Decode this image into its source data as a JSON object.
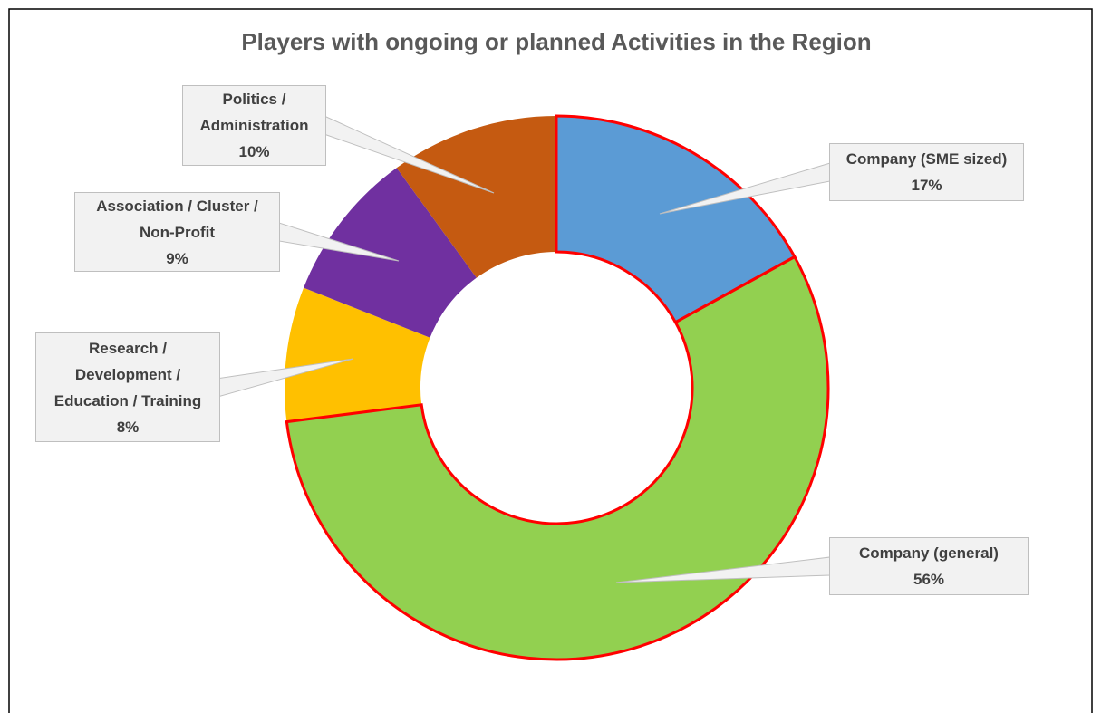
{
  "chart_data": {
    "type": "donut",
    "title": "Players with ongoing or planned Activities in the Region",
    "categories": [
      "Company (SME sized)",
      "Company (general)",
      "Research / Development / Education / Training",
      "Association / Cluster / Non-Profit",
      "Politics / Administration"
    ],
    "values": [
      17,
      56,
      8,
      9,
      10
    ],
    "value_labels": [
      "17%",
      "56%",
      "8%",
      "9%",
      "10%"
    ],
    "colors": [
      "#5b9bd5",
      "#92d050",
      "#ffc000",
      "#7030a0",
      "#c55a11"
    ],
    "highlighted": [
      true,
      true,
      false,
      false,
      false
    ],
    "highlight_color": "#ff0000"
  }
}
